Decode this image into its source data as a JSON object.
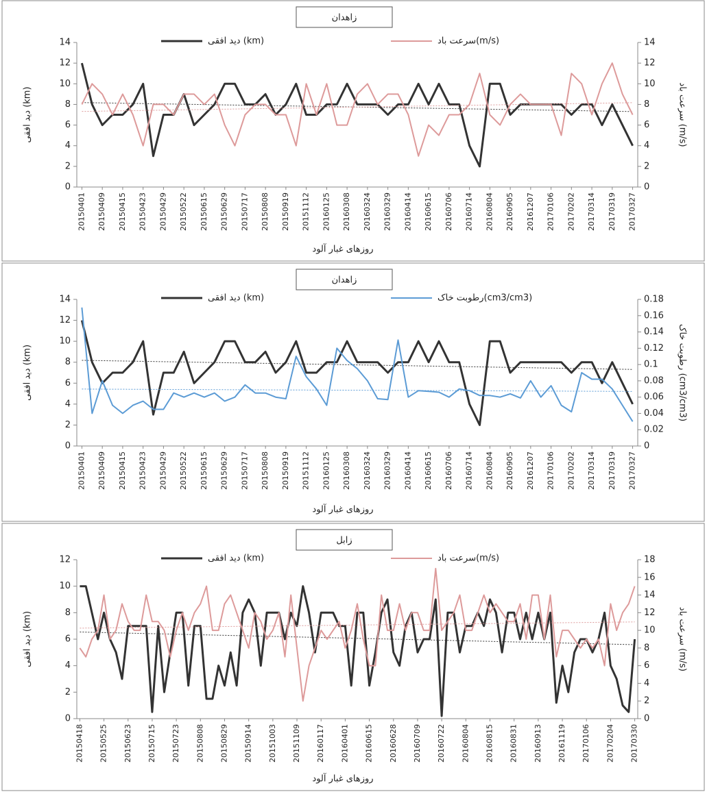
{
  "chart_data": [
    {
      "type": "line",
      "title": "زاهدان",
      "ylabel": "دید افقی (km)",
      "y2label": "سرعت باد (m/s)",
      "xlabel": "روزهای غبار آلود",
      "categories": [
        "20150401",
        null,
        "20150409",
        null,
        "20150415",
        null,
        "20150423",
        null,
        "20150429",
        null,
        "20150522",
        null,
        "20150615",
        null,
        "20150629",
        null,
        "20150717",
        null,
        "20150808",
        null,
        "20150919",
        null,
        "20151112",
        null,
        "20160125",
        null,
        "20160308",
        null,
        "20160324",
        null,
        "20160329",
        null,
        "20160414",
        null,
        "20160615",
        null,
        "20160706",
        null,
        "20160714",
        null,
        "20160804",
        null,
        "20160905",
        null,
        "20161207",
        null,
        "20170106",
        null,
        "20170202",
        null,
        "20170314",
        null,
        "20170319",
        null,
        "20170327"
      ],
      "series": [
        {
          "name": "دید افقی (km)",
          "color": "#333333",
          "trendline": true,
          "values": [
            12,
            8,
            6,
            7,
            7,
            8,
            10,
            3,
            7,
            7,
            9,
            6,
            7,
            8,
            10,
            10,
            8,
            8,
            9,
            7,
            8,
            10,
            7,
            7,
            8,
            8,
            10,
            8,
            8,
            8,
            7,
            8,
            8,
            10,
            8,
            10,
            8,
            8,
            4,
            2,
            10,
            10,
            7,
            8,
            8,
            8,
            8,
            8,
            7,
            8,
            8,
            6,
            8,
            6,
            4
          ]
        },
        {
          "name": "سرعت باد(m/s)",
          "color": "#dd9a9a",
          "axis": "y2",
          "trendline": true,
          "values": [
            8,
            10,
            9,
            7,
            9,
            7,
            4,
            8,
            8,
            7,
            9,
            9,
            8,
            9,
            6,
            4,
            7,
            8,
            8,
            7,
            7,
            4,
            10,
            7,
            10,
            6,
            6,
            9,
            10,
            8,
            9,
            9,
            7,
            3,
            6,
            5,
            7,
            7,
            8,
            11,
            7,
            6,
            8,
            9,
            8,
            8,
            8,
            5,
            11,
            10,
            7,
            10,
            12,
            9,
            7
          ]
        }
      ],
      "ylim": [
        0,
        14
      ],
      "yticks": [
        0,
        2,
        4,
        6,
        8,
        10,
        12,
        14
      ],
      "y2lim": [
        0,
        14
      ],
      "y2ticks": [
        0,
        2,
        4,
        6,
        8,
        10,
        12,
        14
      ]
    },
    {
      "type": "line",
      "title": "زاهدان",
      "ylabel": "دید افقی (km)",
      "y2label": "رطوبت خاک (cm3/cm3)",
      "xlabel": "روزهای غبار آلود",
      "categories": [
        "20150401",
        null,
        "20150409",
        null,
        "20150415",
        null,
        "20150423",
        null,
        "20150429",
        null,
        "20150522",
        null,
        "20150615",
        null,
        "20150629",
        null,
        "20150717",
        null,
        "20150808",
        null,
        "20150919",
        null,
        "20151112",
        null,
        "20160125",
        null,
        "20160308",
        null,
        "20160324",
        null,
        "20160329",
        null,
        "20160414",
        null,
        "20160615",
        null,
        "20160706",
        null,
        "20160714",
        null,
        "20160804",
        null,
        "20160905",
        null,
        "20161207",
        null,
        "20170106",
        null,
        "20170202",
        null,
        "20170314",
        null,
        "20170319",
        null,
        "20170327"
      ],
      "series": [
        {
          "name": "دید افقی (km)",
          "color": "#333333",
          "trendline": true,
          "values": [
            12,
            8,
            6,
            7,
            7,
            8,
            10,
            3,
            7,
            7,
            9,
            6,
            7,
            8,
            10,
            10,
            8,
            8,
            9,
            7,
            8,
            10,
            7,
            7,
            8,
            8,
            10,
            8,
            8,
            8,
            7,
            8,
            8,
            10,
            8,
            10,
            8,
            8,
            4,
            2,
            10,
            10,
            7,
            8,
            8,
            8,
            8,
            8,
            7,
            8,
            8,
            6,
            8,
            6,
            4
          ]
        },
        {
          "name": "رطوبت خاک(cm3/cm3)",
          "color": "#5b9bd5",
          "axis": "y2",
          "trendline": true,
          "values": [
            0.17,
            0.04,
            0.08,
            0.05,
            0.04,
            0.05,
            0.055,
            0.045,
            0.045,
            0.065,
            0.06,
            0.065,
            0.06,
            0.065,
            0.055,
            0.06,
            0.075,
            0.065,
            0.065,
            0.06,
            0.058,
            0.11,
            0.085,
            0.07,
            0.05,
            0.12,
            0.105,
            0.095,
            0.08,
            0.058,
            0.057,
            0.13,
            0.06,
            0.068,
            0.067,
            0.066,
            0.06,
            0.07,
            0.068,
            0.062,
            0.062,
            0.06,
            0.064,
            0.059,
            0.08,
            0.06,
            0.074,
            0.05,
            0.042,
            0.09,
            0.082,
            0.082,
            0.07,
            0.05,
            0.03
          ]
        }
      ],
      "ylim": [
        0,
        14
      ],
      "yticks": [
        0,
        2,
        4,
        6,
        8,
        10,
        12,
        14
      ],
      "y2lim": [
        0,
        0.18
      ],
      "y2ticks": [
        0,
        0.02,
        0.04,
        0.06,
        0.08,
        0.1,
        0.12,
        0.14,
        0.16,
        0.18
      ]
    },
    {
      "type": "line",
      "title": "زابل",
      "ylabel": "دید افقی (km)",
      "y2label": "سرعت باد (m/s)",
      "xlabel": "روزهای غبار آلود",
      "categories": [
        "20150418",
        null,
        null,
        null,
        "20150525",
        null,
        null,
        null,
        "20150623",
        null,
        null,
        null,
        "20150715",
        null,
        null,
        null,
        "20150723",
        null,
        null,
        null,
        "20150808",
        null,
        null,
        null,
        "20150829",
        null,
        null,
        null,
        "20150914",
        null,
        null,
        null,
        "20151003",
        null,
        null,
        null,
        "20151109",
        null,
        null,
        null,
        "20160117",
        null,
        null,
        null,
        "20160401",
        null,
        null,
        null,
        "20160615",
        null,
        null,
        null,
        "20160628",
        null,
        null,
        null,
        "20160709",
        null,
        null,
        null,
        "20160722",
        null,
        null,
        null,
        "20160804",
        null,
        null,
        null,
        "20160815",
        null,
        null,
        null,
        "20160831",
        null,
        null,
        null,
        "20160913",
        null,
        null,
        null,
        "20161119",
        null,
        null,
        null,
        "20170106",
        null,
        null,
        null,
        "20170204",
        null,
        null,
        null,
        "20170330"
      ],
      "series": [
        {
          "name": "دید افقی (km)",
          "color": "#333333",
          "trendline": true,
          "values": [
            10,
            10,
            8,
            6,
            8,
            6,
            5,
            3,
            7,
            7,
            7,
            7,
            0.5,
            7,
            2,
            5,
            8,
            8,
            2.5,
            7,
            7,
            1.5,
            1.5,
            4,
            2.5,
            5,
            2.5,
            8,
            9,
            8,
            4,
            8,
            8,
            8,
            6,
            8,
            7,
            10,
            8,
            5,
            8,
            8,
            8,
            7,
            7,
            2.5,
            8,
            8,
            2.5,
            5,
            8,
            9,
            5,
            4,
            7,
            8,
            5,
            6,
            6,
            9,
            0.2,
            8,
            8,
            5,
            7,
            7,
            8,
            7,
            9,
            8,
            5,
            8,
            8,
            6,
            8,
            6,
            8,
            6,
            8,
            1.2,
            4,
            2,
            5,
            6,
            6,
            5,
            6,
            8,
            4,
            3,
            1,
            0.5,
            6
          ]
        },
        {
          "name": "سرعت باد(m/s)",
          "color": "#dd9a9a",
          "axis": "y2",
          "trendline": true,
          "values": [
            8,
            7,
            9,
            10,
            14,
            9,
            10,
            13,
            11,
            10,
            10,
            14,
            11,
            11,
            10,
            7,
            10,
            12,
            10,
            12,
            13,
            15,
            10,
            10,
            13,
            14,
            12,
            10,
            8,
            12,
            11,
            9,
            10,
            12,
            7,
            14,
            8,
            2,
            6,
            8,
            10,
            9,
            10,
            11,
            8,
            10,
            13,
            9,
            6,
            6,
            14,
            10,
            10,
            13,
            10,
            12,
            12,
            10,
            10,
            17,
            10,
            11,
            12,
            14,
            10,
            10,
            12,
            14,
            12,
            13,
            12,
            11,
            11,
            13,
            9,
            14,
            14,
            9,
            14,
            7,
            10,
            10,
            9,
            8,
            9,
            8,
            9,
            6,
            13,
            10,
            12,
            13,
            15
          ]
        }
      ],
      "ylim": [
        0,
        12
      ],
      "yticks": [
        0,
        2,
        4,
        6,
        8,
        10,
        12
      ],
      "y2lim": [
        0,
        18
      ],
      "y2ticks": [
        0,
        2,
        4,
        6,
        8,
        10,
        12,
        14,
        16,
        18
      ]
    }
  ]
}
